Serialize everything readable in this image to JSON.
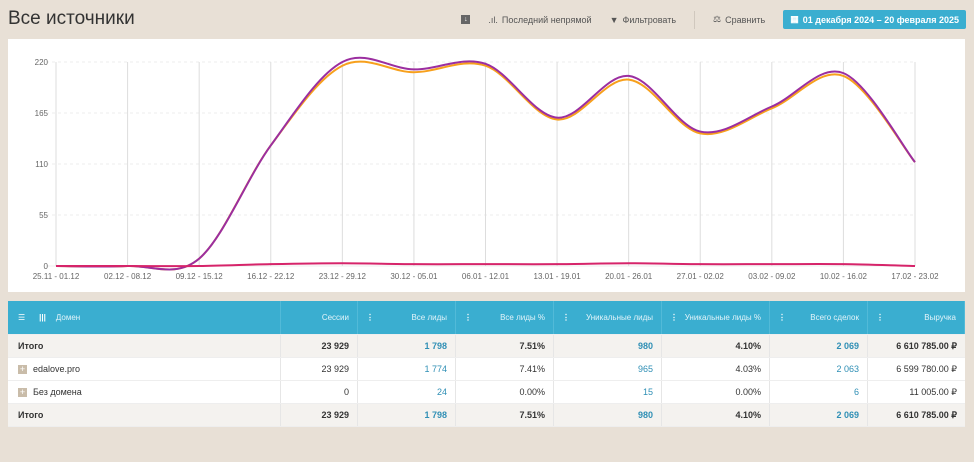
{
  "header": {
    "title": "Все источники",
    "download_icon": "download-icon",
    "attribution": "Последний непрямой",
    "filter": "Фильтровать",
    "compare": "Сравнить",
    "date_range": "01 декабря 2024 – 20 февраля 2025"
  },
  "chart_data": {
    "type": "line",
    "categories": [
      "25.11 - 01.12",
      "02.12 - 08.12",
      "09.12 - 15.12",
      "16.12 - 22.12",
      "23.12 - 29.12",
      "30.12 - 05.01",
      "06.01 - 12.01",
      "13.01 - 19.01",
      "20.01 - 26.01",
      "27.01 - 02.02",
      "03.02 - 09.02",
      "10.02 - 16.02",
      "17.02 - 23.02"
    ],
    "yticks": [
      "0",
      "55",
      "110",
      "165",
      "220"
    ],
    "ylim": [
      0,
      220
    ],
    "series": [
      {
        "name": "purple",
        "color": "#9b2ea0",
        "values": [
          0,
          0,
          8,
          130,
          220,
          212,
          218,
          160,
          205,
          145,
          172,
          208,
          112
        ]
      },
      {
        "name": "orange",
        "color": "#f7a01c",
        "values": [
          0,
          0,
          8,
          130,
          216,
          209,
          216,
          158,
          201,
          143,
          170,
          205,
          112
        ]
      },
      {
        "name": "pink",
        "color": "#d6246a",
        "values": [
          0,
          0,
          0,
          2,
          3,
          2,
          2,
          2,
          3,
          2,
          2,
          2,
          0
        ]
      }
    ]
  },
  "table": {
    "headers": [
      "Домен",
      "Сессии",
      "Все лиды",
      "Все лиды %",
      "Уникальные лиды",
      "Уникальные лиды %",
      "Всего сделок",
      "Выручка"
    ],
    "rows": [
      {
        "type": "total",
        "cells": [
          "Итого",
          "23 929",
          "1 798",
          "7.51%",
          "980",
          "4.10%",
          "2 069",
          "6 610 785.00 ₽"
        ]
      },
      {
        "type": "item",
        "cells": [
          "edalove.pro",
          "23 929",
          "1 774",
          "7.41%",
          "965",
          "4.03%",
          "2 063",
          "6 599 780.00 ₽"
        ]
      },
      {
        "type": "item",
        "cells": [
          "Без домена",
          "0",
          "24",
          "0.00%",
          "15",
          "0.00%",
          "6",
          "11 005.00 ₽"
        ]
      },
      {
        "type": "total",
        "cells": [
          "Итого",
          "23 929",
          "1 798",
          "7.51%",
          "980",
          "4.10%",
          "2 069",
          "6 610 785.00 ₽"
        ]
      }
    ]
  }
}
